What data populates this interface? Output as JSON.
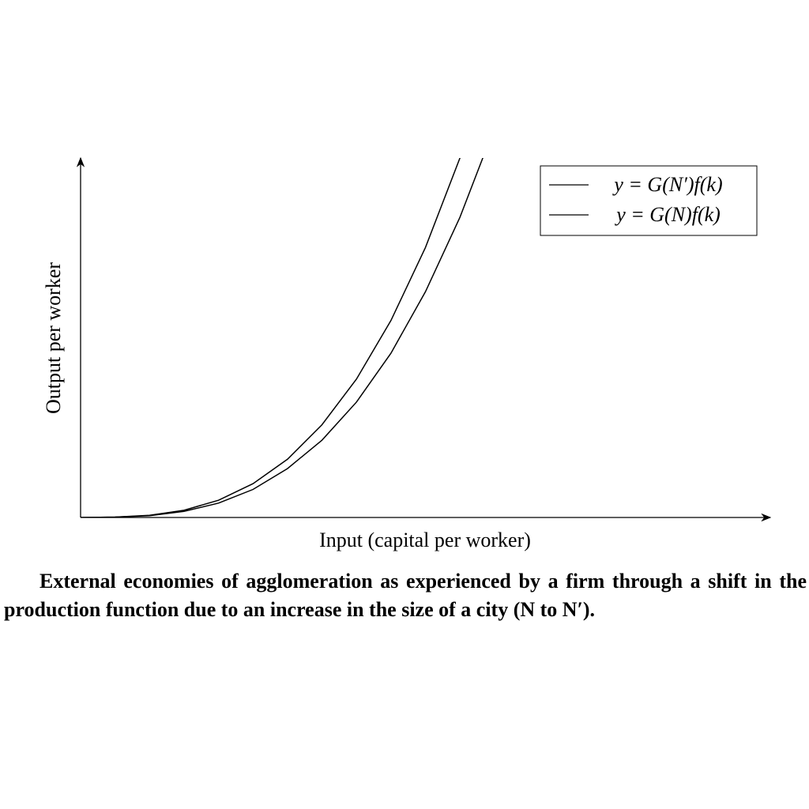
{
  "chart_data": {
    "type": "line",
    "x_label": "Input (capital per worker)",
    "y_label": "Output per worker",
    "caption": "External economies of agglomeration as experienced by a firm through a shift in the production function due to an increase in the size of a city (N to N′).",
    "x": [
      0,
      0.5,
      1,
      1.5,
      2,
      2.5,
      3,
      3.5,
      4,
      4.5,
      5,
      5.5,
      6
    ],
    "series": [
      {
        "name": "y = G(N′)f(k)",
        "color": "#000000",
        "values": [
          0,
          0.01,
          0.06,
          0.2,
          0.48,
          0.94,
          1.62,
          2.58,
          3.85,
          5.48,
          7.51,
          10.0,
          12.98
        ]
      },
      {
        "name": "y = G(N)f(k)",
        "color": "#000000",
        "values": [
          0,
          0.01,
          0.05,
          0.17,
          0.4,
          0.78,
          1.36,
          2.15,
          3.21,
          4.57,
          6.28,
          8.35,
          10.84
        ]
      }
    ],
    "xlim": [
      0,
      10
    ],
    "ylim": [
      0,
      10
    ],
    "legend": "upper right",
    "grid": false
  }
}
